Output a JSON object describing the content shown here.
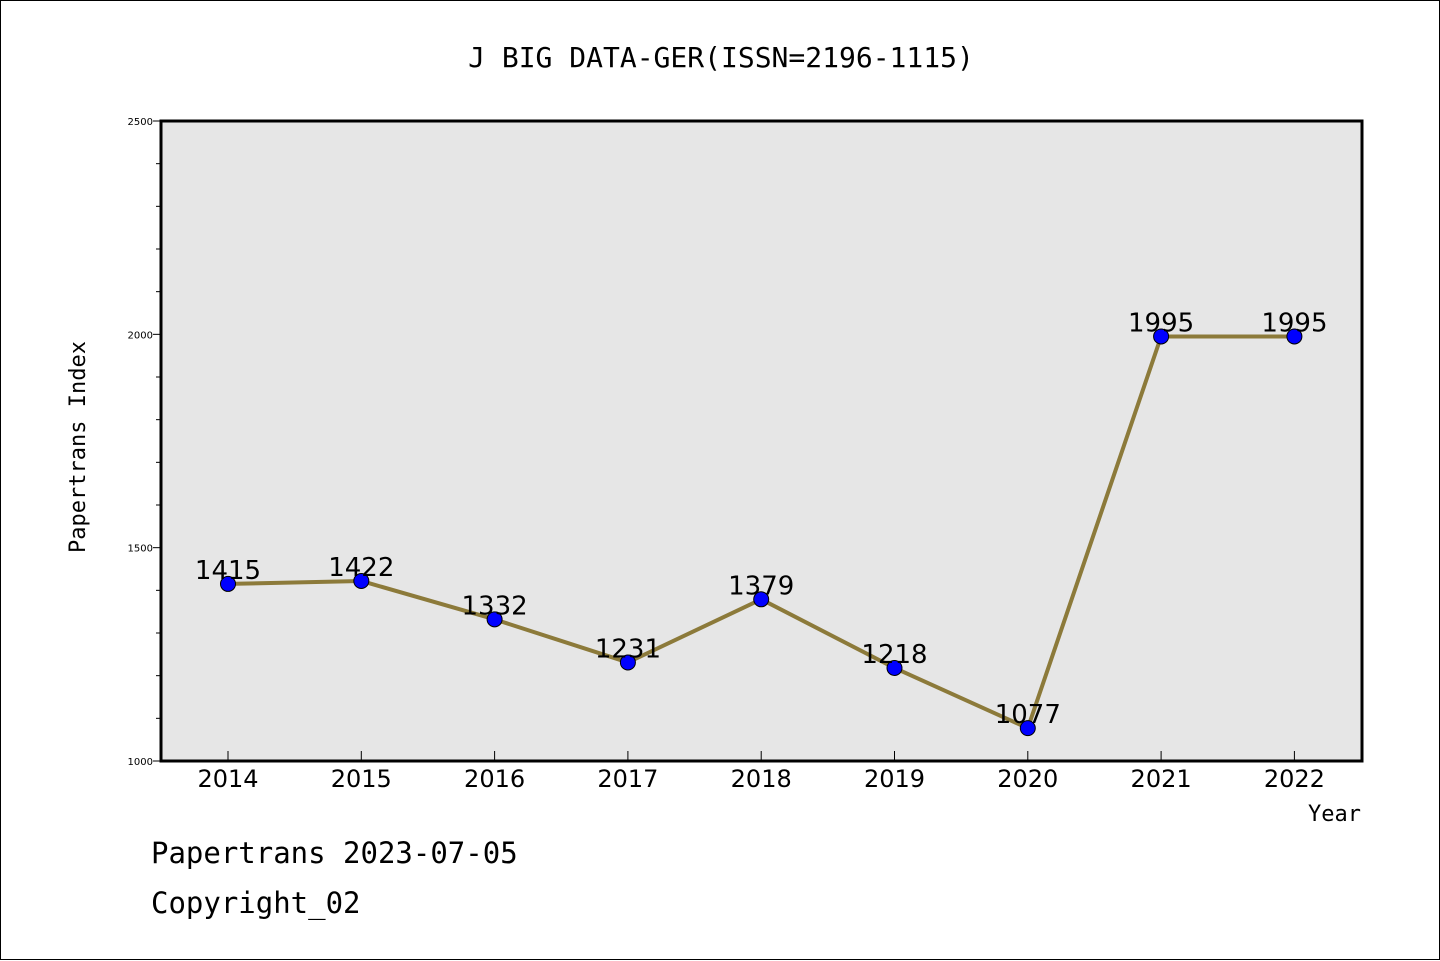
{
  "chart_data": {
    "type": "line",
    "title": "J BIG DATA-GER(ISSN=2196-1115)",
    "xlabel": "Year",
    "ylabel": "Papertrans Index",
    "categories": [
      "2014",
      "2015",
      "2016",
      "2017",
      "2018",
      "2019",
      "2020",
      "2021",
      "2022"
    ],
    "series": [
      {
        "values": [
          1415,
          1422,
          1332,
          1231,
          1379,
          1218,
          1077,
          1995,
          1995
        ]
      }
    ],
    "ylim": [
      1000,
      2500
    ],
    "yticks": [
      "1000",
      "1500",
      "2000",
      "2500"
    ],
    "grid": false,
    "colors": {
      "line": "#8c7a3a",
      "marker": "#0000ff",
      "plot_background": "#e6e6e6"
    }
  },
  "footer": {
    "line1": "Papertrans 2023-07-05",
    "line2": "Copyright_02"
  }
}
